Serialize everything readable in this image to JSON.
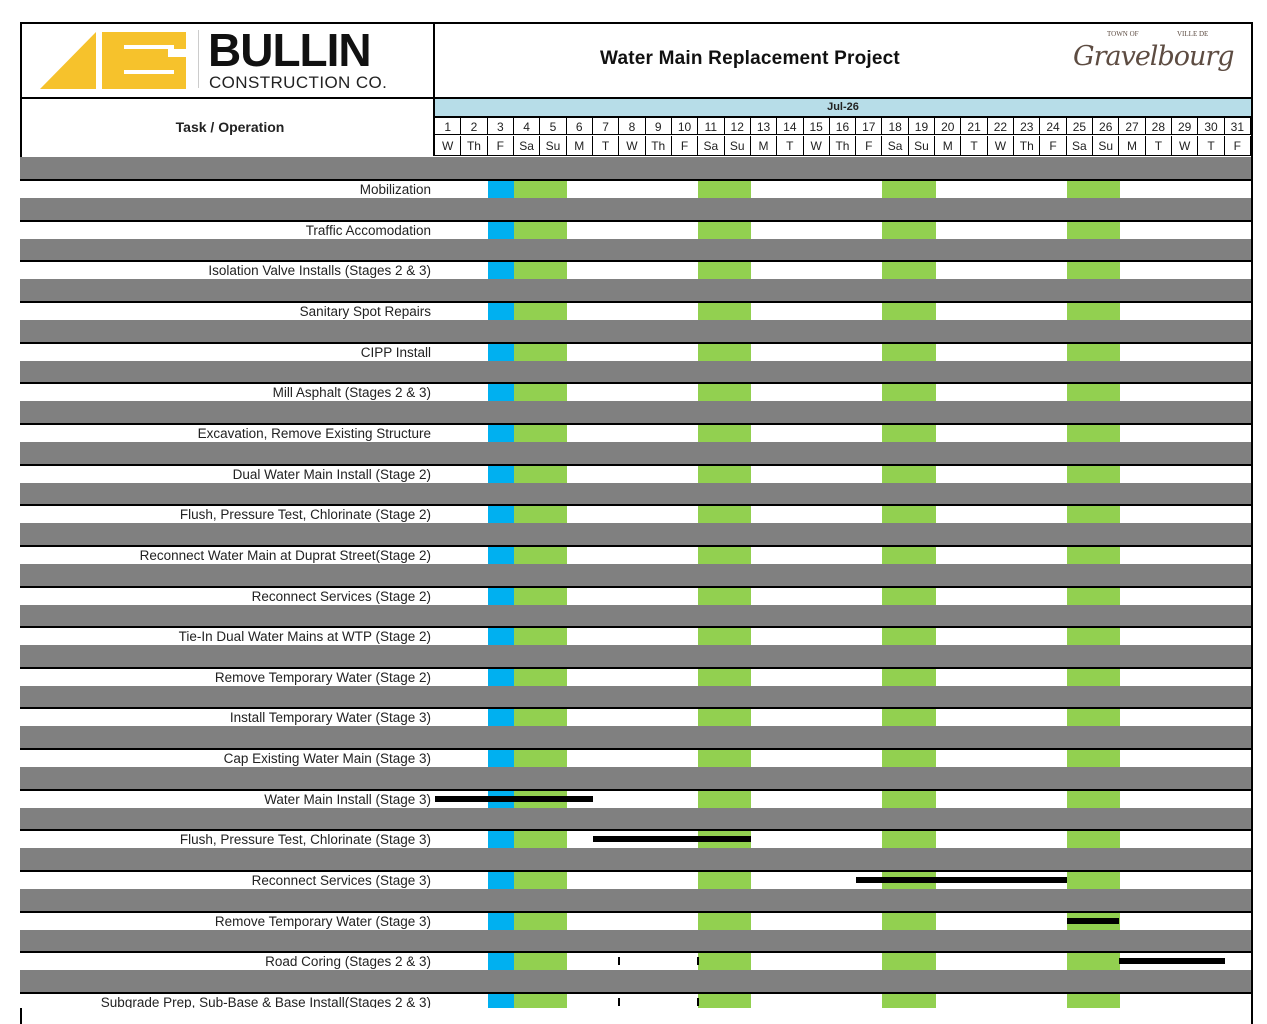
{
  "header": {
    "company_logo": {
      "name": "BULLIN",
      "sub": "CONSTRUCTION CO."
    },
    "title": "Water Main Replacement Project",
    "town_logo": {
      "prefix_en": "TOWN OF",
      "prefix_fr": "VILLE DE",
      "name": "Gravelbourg"
    }
  },
  "table": {
    "task_header": "Task / Operation",
    "month": "Jul-26",
    "days": [
      1,
      2,
      3,
      4,
      5,
      6,
      7,
      8,
      9,
      10,
      11,
      12,
      13,
      14,
      15,
      16,
      17,
      18,
      19,
      20,
      21,
      22,
      23,
      24,
      25,
      26,
      27,
      28,
      29,
      30,
      31
    ],
    "weekdays": [
      "W",
      "Th",
      "F",
      "Sa",
      "Su",
      "M",
      "T",
      "W",
      "Th",
      "F",
      "Sa",
      "Su",
      "M",
      "T",
      "W",
      "Th",
      "F",
      "Sa",
      "Su",
      "M",
      "T",
      "W",
      "Th",
      "F",
      "Sa",
      "Su",
      "M",
      "T",
      "W",
      "T",
      "F"
    ],
    "highlight_days": {
      "3": "#00b0f0",
      "4": "#92d050",
      "5": "#92d050",
      "11": "#92d050",
      "12": "#92d050",
      "18": "#92d050",
      "19": "#92d050",
      "25": "#92d050",
      "26": "#92d050"
    }
  },
  "colors": {
    "separator": "#808080",
    "month_bg": "#b7dde8",
    "holiday": "#00b0f0",
    "weekend": "#92d050",
    "bar": "#000000"
  },
  "tasks": [
    {
      "label": "Mobilization",
      "bars": [],
      "ticks": []
    },
    {
      "label": "Traffic Accomodation",
      "bars": [],
      "ticks": []
    },
    {
      "label": "Isolation Valve Installs (Stages 2 & 3)",
      "bars": [],
      "ticks": []
    },
    {
      "label": "Sanitary Spot Repairs",
      "bars": [],
      "ticks": []
    },
    {
      "label": "CIPP Install",
      "bars": [],
      "ticks": []
    },
    {
      "label": "Mill Asphalt (Stages 2 & 3)",
      "bars": [],
      "ticks": []
    },
    {
      "label": "Excavation, Remove Existing Structure",
      "bars": [],
      "ticks": []
    },
    {
      "label": "Dual Water Main Install (Stage 2)",
      "bars": [],
      "ticks": []
    },
    {
      "label": "Flush, Pressure Test, Chlorinate (Stage 2)",
      "bars": [],
      "ticks": []
    },
    {
      "label": "Reconnect Water Main at Duprat Street(Stage 2)",
      "bars": [],
      "ticks": []
    },
    {
      "label": "Reconnect Services (Stage 2)",
      "bars": [],
      "ticks": []
    },
    {
      "label": "Tie-In Dual Water Mains at WTP (Stage 2)",
      "bars": [],
      "ticks": []
    },
    {
      "label": "Remove Temporary Water (Stage 2)",
      "bars": [],
      "ticks": []
    },
    {
      "label": "Install Temporary Water (Stage 3)",
      "bars": [],
      "ticks": []
    },
    {
      "label": "Cap Existing Water Main (Stage 3)",
      "bars": [],
      "ticks": []
    },
    {
      "label": "Water Main Install (Stage 3)",
      "bars": [
        {
          "start_day": 1,
          "end_day": 6
        }
      ],
      "ticks": []
    },
    {
      "label": "Flush, Pressure Test, Chlorinate (Stage 3)",
      "bars": [
        {
          "start_day": 7,
          "end_day": 12
        }
      ],
      "ticks": []
    },
    {
      "label": "Reconnect Services (Stage 3)",
      "bars": [
        {
          "start_day": 17,
          "end_day": 24
        }
      ],
      "ticks": []
    },
    {
      "label": "Remove Temporary Water (Stage 3)",
      "bars": [
        {
          "start_day": 25,
          "end_day": 26
        }
      ],
      "ticks": []
    },
    {
      "label": "Road Coring (Stages 2 & 3)",
      "bars": [
        {
          "start_day": 27,
          "end_day": 30
        }
      ],
      "ticks": [
        7,
        10
      ]
    },
    {
      "label": "Subgrade Prep, Sub-Base & Base Install(Stages 2 & 3)",
      "bars": [],
      "ticks": [
        7,
        10
      ]
    }
  ]
}
